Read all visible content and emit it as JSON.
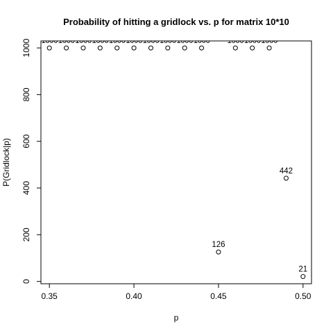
{
  "chart_data": {
    "type": "scatter",
    "title": "Probability of hitting a gridlock vs. p for matrix 10*10",
    "xlabel": "p",
    "ylabel": "P(Gridlock|p)",
    "xlim": [
      0.345,
      0.505
    ],
    "ylim": [
      -10,
      1030
    ],
    "grid": false,
    "legend": "none",
    "x_ticks": [
      0.35,
      0.4,
      0.45,
      0.5
    ],
    "x_tick_labels": [
      "0.35",
      "0.40",
      "0.45",
      "0.50"
    ],
    "y_ticks": [
      0,
      200,
      400,
      600,
      800,
      1000
    ],
    "y_tick_labels": [
      "0",
      "200",
      "400",
      "600",
      "800",
      "1000"
    ],
    "points": [
      {
        "x": 0.35,
        "y": 1000,
        "label": "1000"
      },
      {
        "x": 0.36,
        "y": 1000,
        "label": "1000"
      },
      {
        "x": 0.37,
        "y": 1000,
        "label": "1000"
      },
      {
        "x": 0.38,
        "y": 1000,
        "label": "1000"
      },
      {
        "x": 0.39,
        "y": 1000,
        "label": "1000"
      },
      {
        "x": 0.4,
        "y": 1000,
        "label": "1000"
      },
      {
        "x": 0.41,
        "y": 1000,
        "label": "1000"
      },
      {
        "x": 0.42,
        "y": 1000,
        "label": "1000"
      },
      {
        "x": 0.43,
        "y": 1000,
        "label": "1000"
      },
      {
        "x": 0.44,
        "y": 1000,
        "label": "1000"
      },
      {
        "x": 0.45,
        "y": 126,
        "label": "126"
      },
      {
        "x": 0.46,
        "y": 1000,
        "label": "1000"
      },
      {
        "x": 0.47,
        "y": 1000,
        "label": "1000"
      },
      {
        "x": 0.48,
        "y": 1000,
        "label": "1000"
      },
      {
        "x": 0.49,
        "y": 442,
        "label": "442"
      },
      {
        "x": 0.5,
        "y": 21,
        "label": "21"
      }
    ],
    "point_color": "#000000"
  }
}
